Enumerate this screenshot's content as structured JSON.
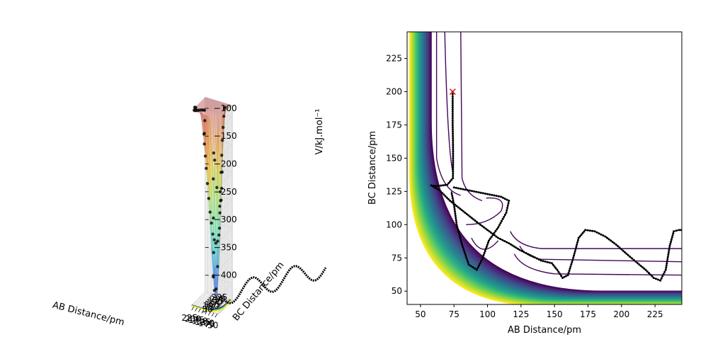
{
  "chart_data": [
    {
      "type": "surface3d",
      "xlabel": "AB Distance/pm",
      "ylabel": "BC Distance/pm",
      "zlabel": "V/kJ.mol$^{-1}$",
      "zlabel_display": "V/kJ.mol⁻¹",
      "xticks": [
        "50",
        "75",
        "100",
        "125",
        "150",
        "175",
        "200",
        "225"
      ],
      "yticks": [
        "50",
        "75",
        "100",
        "125",
        "150",
        "175",
        "200",
        "225"
      ],
      "zticks": [
        "−100",
        "−150",
        "−200",
        "−250",
        "−300",
        "−350",
        "−400"
      ],
      "xlim": [
        40,
        245
      ],
      "ylim": [
        40,
        245
      ],
      "zlim": [
        -430,
        -80
      ],
      "colormap": "jet (translucent surface) + viridis contour floor",
      "trajectory_color": "#000000"
    },
    {
      "type": "contour",
      "xlabel": "AB Distance/pm",
      "ylabel": "BC Distance/pm",
      "xlim": [
        40,
        245
      ],
      "ylim": [
        40,
        245
      ],
      "xticks": [
        50,
        75,
        100,
        125,
        150,
        175,
        200,
        225
      ],
      "yticks": [
        50,
        75,
        100,
        125,
        150,
        175,
        200,
        225
      ],
      "colormap": "viridis",
      "start_marker": {
        "x": 74,
        "y": 200,
        "symbol": "x",
        "color": "#d62728"
      },
      "trajectory": [
        [
          74,
          200
        ],
        [
          74,
          193
        ],
        [
          74,
          185
        ],
        [
          74,
          175
        ],
        [
          74.2,
          165
        ],
        [
          74.3,
          155
        ],
        [
          74.3,
          145
        ],
        [
          74.2,
          135
        ],
        [
          70,
          130
        ],
        [
          62,
          129
        ],
        [
          58,
          129.5
        ],
        [
          64,
          126
        ],
        [
          72,
          118
        ],
        [
          82,
          110
        ],
        [
          92,
          102
        ],
        [
          100,
          96
        ],
        [
          108,
          90
        ],
        [
          116,
          86
        ],
        [
          124,
          81
        ],
        [
          132,
          77
        ],
        [
          140,
          73
        ],
        [
          148,
          71
        ],
        [
          152,
          66
        ],
        [
          156,
          60
        ],
        [
          160,
          62
        ],
        [
          164,
          75
        ],
        [
          168,
          90
        ],
        [
          173,
          96
        ],
        [
          180,
          95
        ],
        [
          188,
          91
        ],
        [
          196,
          85
        ],
        [
          205,
          77
        ],
        [
          212,
          71
        ],
        [
          218,
          66
        ],
        [
          224,
          60
        ],
        [
          229,
          58
        ],
        [
          233,
          66
        ],
        [
          236,
          84
        ],
        [
          239,
          95
        ],
        [
          243,
          96
        ],
        [
          246,
          96
        ]
      ],
      "trajectory2": [
        [
          75,
          128
        ],
        [
          95,
          124
        ],
        [
          110,
          121
        ],
        [
          116,
          118
        ],
        [
          114,
          109
        ],
        [
          108,
          98
        ],
        [
          101,
          88
        ],
        [
          96,
          74
        ],
        [
          92,
          66
        ],
        [
          86,
          70
        ],
        [
          81,
          85
        ],
        [
          77,
          100
        ],
        [
          75,
          115
        ],
        [
          73,
          125
        ]
      ]
    }
  ]
}
